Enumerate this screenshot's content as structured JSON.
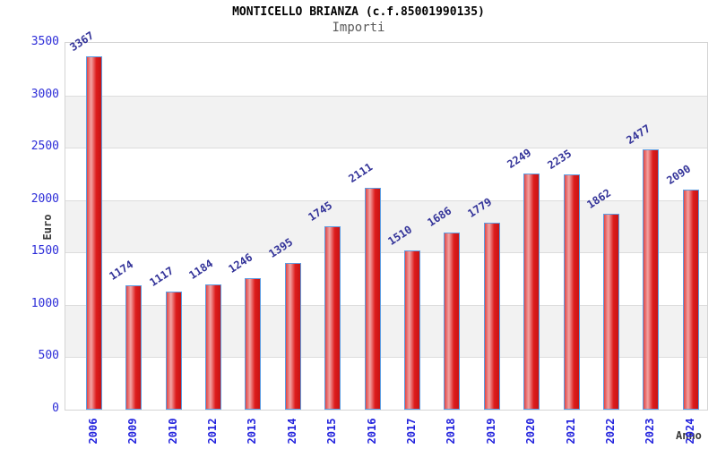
{
  "header": {
    "title": "MONTICELLO BRIANZA (c.f.85001990135)",
    "subtitle": "Importi"
  },
  "chart_data": {
    "type": "bar",
    "title": "MONTICELLO BRIANZA (c.f.85001990135)",
    "subtitle": "Importi",
    "xlabel": "Anno",
    "ylabel": "Euro",
    "categories": [
      "2006",
      "2009",
      "2010",
      "2012",
      "2013",
      "2014",
      "2015",
      "2016",
      "2017",
      "2018",
      "2019",
      "2020",
      "2021",
      "2022",
      "2023",
      "2024"
    ],
    "values": [
      3367,
      1174,
      1117,
      1184,
      1246,
      1395,
      1745,
      2111,
      1510,
      1686,
      1779,
      2249,
      2235,
      1862,
      2477,
      2090
    ],
    "ylim": [
      0,
      3500
    ],
    "y_ticks": [
      0,
      500,
      1000,
      1500,
      2000,
      2500,
      3000,
      3500
    ],
    "gray_bands": [
      [
        500,
        1000
      ],
      [
        1500,
        2000
      ],
      [
        2500,
        3000
      ]
    ],
    "legend_position": "none",
    "grid": "horizontal",
    "bar_label_rotation_deg": -33,
    "x_tick_rotation_deg": -90
  },
  "colors": {
    "background": "#ffffff",
    "title_color": "#000000",
    "subtitle_color": "#5a5a5a",
    "tick_label": "#2d2dd8",
    "x_tick_label": "#2323dd",
    "value_label": "#333399",
    "axis_title": "#3a3a3a",
    "grid_band": "#f2f2f2",
    "gridline": "#dddddd",
    "plot_border": "#d4d4d4",
    "bar_border": "#5d9de2",
    "bar_g0": "#e04545",
    "bar_g1": "#f2a3a3",
    "bar_g2": "#dd1c1c",
    "bar_g3": "#c81414"
  }
}
